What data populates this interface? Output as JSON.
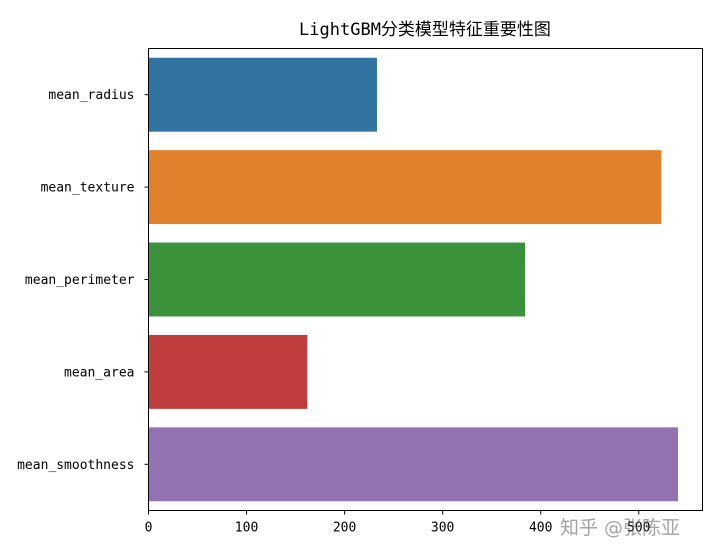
{
  "chart_data": {
    "type": "bar",
    "orientation": "horizontal",
    "title": "LightGBM分类模型特征重要性图",
    "categories": [
      "mean_radius",
      "mean_texture",
      "mean_perimeter",
      "mean_area",
      "mean_smoothness"
    ],
    "values": [
      233,
      523,
      384,
      162,
      540
    ],
    "colors": [
      "#3274a1",
      "#e1812c",
      "#3a923a",
      "#c03d3e",
      "#9372b2"
    ],
    "xlim": [
      0,
      565
    ],
    "xticks": [
      0,
      100,
      200,
      300,
      400,
      500
    ],
    "xlabel": "",
    "ylabel": "",
    "grid": false
  },
  "watermark": "知乎 @张陈亚"
}
